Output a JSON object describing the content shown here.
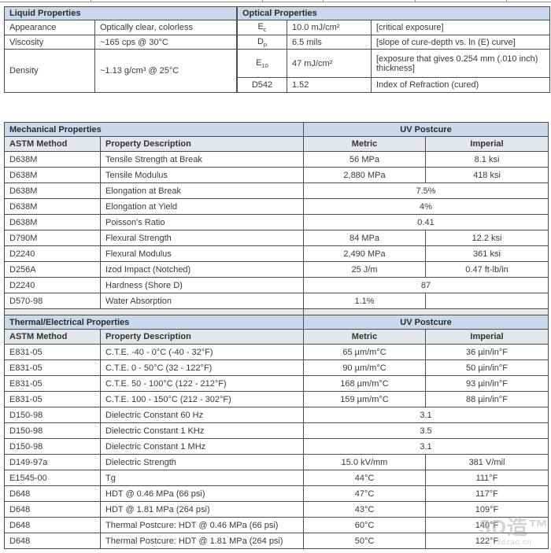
{
  "colors": {
    "header_blue": "#c7d9ea",
    "subheader_gray": "#e3e6ea",
    "spacer_gray": "#e7e8e9",
    "border": "#4d4d4d",
    "text": "#3a3a3a"
  },
  "liquid_properties": {
    "title": "Liquid Properties",
    "rows": [
      {
        "label": "Appearance",
        "value": "Optically clear, colorless"
      },
      {
        "label": "Viscosity",
        "value": "~165 cps @ 30°C"
      },
      {
        "label": "Density",
        "value": "~1.13 g/cm³ @ 25°C"
      }
    ]
  },
  "optical_properties": {
    "title": "Optical Properties",
    "rows": [
      {
        "symbol": "E",
        "subscript": "c",
        "value": "10.0 mJ/cm²",
        "description": "[critical exposure]"
      },
      {
        "symbol": "D",
        "subscript": "p",
        "value": "6.5 mils",
        "description": "[slope of cure-depth vs. ln (E) curve]"
      },
      {
        "symbol": "E",
        "subscript": "10",
        "value": "47 mJ/cm²",
        "description": "[exposure that gives 0.254 mm (.010 inch) thickness]"
      },
      {
        "symbol": "D542",
        "subscript": "",
        "value": "1.52",
        "description": "Index of Refraction (cured)"
      }
    ]
  },
  "mechanical_properties": {
    "title": "Mechanical Properties",
    "postcure_header": "UV Postcure",
    "col_headers": {
      "method": "ASTM Method",
      "description": "Property Description",
      "metric": "Metric",
      "imperial": "Imperial"
    },
    "rows": [
      {
        "method": "D638M",
        "description": "Tensile Strength at Break",
        "metric": "56 MPa",
        "imperial": "8.1 ksi",
        "span": false
      },
      {
        "method": "D638M",
        "description": "Tensile Modulus",
        "metric": "2,880 MPa",
        "imperial": "418 ksi",
        "span": false
      },
      {
        "method": "D638M",
        "description": "Elongation at Break",
        "metric": "7.5%",
        "imperial": "",
        "span": true
      },
      {
        "method": "D638M",
        "description": "Elongation at Yield",
        "metric": "4%",
        "imperial": "",
        "span": true
      },
      {
        "method": "D638M",
        "description": "Poisson's Ratio",
        "metric": "0.41",
        "imperial": "",
        "span": true
      },
      {
        "method": "D790M",
        "description": "Flexural Strength",
        "metric": "84 MPa",
        "imperial": "12.2 ksi",
        "span": false
      },
      {
        "method": "D2240",
        "description": "Flexural Modulus",
        "metric": "2,490 MPa",
        "imperial": "361 ksi",
        "span": false
      },
      {
        "method": "D256A",
        "description": "Izod Impact (Notched)",
        "metric": "25 J/m",
        "imperial": "0.47 ft-lb/in",
        "span": false
      },
      {
        "method": "D2240",
        "description": "Hardness (Shore D)",
        "metric": "87",
        "imperial": "",
        "span": true
      },
      {
        "method": "D570-98",
        "description": "Water Absorption",
        "metric": "1.1%",
        "imperial": "",
        "span": false
      }
    ]
  },
  "thermal_electrical_properties": {
    "title": "Thermal/Electrical Properties",
    "postcure_header": "UV Postcure",
    "col_headers": {
      "method": "ASTM Method",
      "description": "Property Description",
      "metric": "Metric",
      "imperial": "Imperial"
    },
    "rows": [
      {
        "method": "E831-05",
        "description": "C.T.E. -40 - 0°C (-40 - 32°F)",
        "metric": "65 µm/m°C",
        "imperial": "36 µin/in°F",
        "span": false
      },
      {
        "method": "E831-05",
        "description": "C.T.E. 0 - 50°C (32 - 122°F)",
        "metric": "90 µm/m°C",
        "imperial": "50 µin/in°F",
        "span": false
      },
      {
        "method": "E831-05",
        "description": "C.T.E. 50 - 100°C (122 - 212°F)",
        "metric": "168 µm/m°C",
        "imperial": "93 µin/in°F",
        "span": false
      },
      {
        "method": "E831-05",
        "description": "C.T.E. 100 - 150°C (212 - 302°F)",
        "metric": "159 µm/m°C",
        "imperial": "88 µin/in°F",
        "span": false
      },
      {
        "method": "D150-98",
        "description": "Dielectric Constant 60 Hz",
        "metric": "3.1",
        "imperial": "",
        "span": true
      },
      {
        "method": "D150-98",
        "description": "Dielectric Constant 1 KHz",
        "metric": "3.5",
        "imperial": "",
        "span": true
      },
      {
        "method": "D150-98",
        "description": "Dielectric Constant 1 MHz",
        "metric": "3.1",
        "imperial": "",
        "span": true
      },
      {
        "method": "D149-97a",
        "description": "Dielectric Strength",
        "metric": "15.0 kV/mm",
        "imperial": "381 V/mil",
        "span": false
      },
      {
        "method": "E1545-00",
        "description": "Tg",
        "metric": "44°C",
        "imperial": "111°F",
        "span": false
      },
      {
        "method": "D648",
        "description": "HDT @ 0.46 MPa (66 psi)",
        "metric": "47°C",
        "imperial": "117°F",
        "span": false
      },
      {
        "method": "D648",
        "description": "HDT @ 1.81 MPa (264 psi)",
        "metric": "43°C",
        "imperial": "109°F",
        "span": false
      },
      {
        "method": "D648",
        "description": "Thermal Postcure: HDT @ 0.46 MPa (66 psi)",
        "metric": "60°C",
        "imperial": "140°F",
        "span": false
      },
      {
        "method": "D648",
        "description": "Thermal Postcure: HDT @ 1.81 MPa (264 psi)",
        "metric": "50°C",
        "imperial": "122°F",
        "span": false
      }
    ]
  },
  "watermark": {
    "logo": "3D造™",
    "url": "3dzao.cn"
  }
}
